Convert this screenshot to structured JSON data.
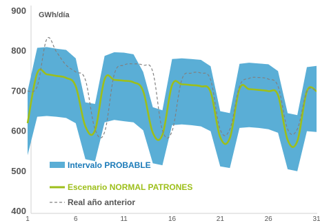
{
  "chart_data": {
    "type": "area",
    "unit_label": "GWh/día",
    "x": [
      1,
      2,
      3,
      4,
      5,
      6,
      7,
      8,
      9,
      10,
      11,
      12,
      13,
      14,
      15,
      16,
      17,
      18,
      19,
      20,
      21,
      22,
      23,
      24,
      25,
      26,
      27,
      28,
      29,
      30,
      31
    ],
    "xticks": [
      1,
      6,
      11,
      16,
      21,
      26,
      31
    ],
    "ylim": [
      400,
      900
    ],
    "yticks": [
      400,
      500,
      600,
      700,
      800,
      900
    ],
    "grid": false,
    "legend_position": "bottom-left",
    "colors": {
      "band": "#5aaed6",
      "scenario": "#9dbf1a",
      "real": "#808080",
      "band_label": "#1a7ab8",
      "axis": "#555555"
    },
    "series": [
      {
        "name": "Intervalo PROBABLE",
        "type": "band",
        "upper": [
          700,
          808,
          810,
          806,
          803,
          782,
          672,
          668,
          788,
          797,
          796,
          792,
          748,
          660,
          652,
          780,
          782,
          780,
          778,
          762,
          650,
          645,
          768,
          771,
          769,
          767,
          750,
          645,
          640,
          760,
          763
        ],
        "lower": [
          540,
          636,
          638,
          636,
          633,
          620,
          530,
          525,
          622,
          628,
          625,
          622,
          602,
          520,
          515,
          615,
          617,
          615,
          612,
          600,
          512,
          508,
          608,
          610,
          608,
          605,
          596,
          505,
          500,
          600,
          598
        ]
      },
      {
        "name": "Escenario NORMAL PATRONES",
        "type": "line",
        "values": [
          620,
          745,
          742,
          738,
          733,
          712,
          612,
          602,
          730,
          728,
          726,
          722,
          700,
          596,
          591,
          715,
          717,
          715,
          712,
          698,
          585,
          583,
          706,
          705,
          703,
          700,
          690,
          578,
          575,
          700,
          700
        ]
      },
      {
        "name": "Real año anterior",
        "type": "line-dashed",
        "values": [
          700,
          712,
          830,
          798,
          765,
          748,
          728,
          605,
          598,
          742,
          765,
          768,
          765,
          748,
          602,
          600,
          728,
          745,
          745,
          728,
          604,
          605,
          712,
          732,
          734,
          730,
          712,
          605,
          605,
          700,
          700
        ]
      }
    ]
  }
}
